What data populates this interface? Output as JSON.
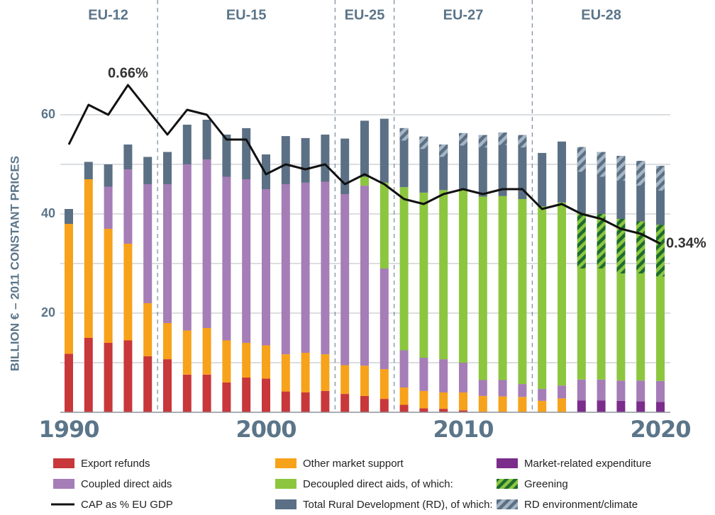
{
  "chart_data": {
    "type": "bar",
    "y_label": "BILLION € – 2011 CONSTANT PRICES",
    "categories": [
      1990,
      1991,
      1992,
      1993,
      1994,
      1995,
      1996,
      1997,
      1998,
      1999,
      2000,
      2001,
      2002,
      2003,
      2004,
      2005,
      2006,
      2007,
      2008,
      2009,
      2010,
      2011,
      2012,
      2013,
      2014,
      2015,
      2016,
      2017,
      2018,
      2019,
      2020
    ],
    "xticks": [
      1990,
      2000,
      2010,
      2020
    ],
    "ylim": [
      0,
      60
    ],
    "yticks": [
      20,
      40,
      60
    ],
    "ygrid": [
      0,
      10,
      20,
      30,
      40,
      50,
      60
    ],
    "y2lim": [
      0,
      0.6
    ],
    "periods": [
      {
        "label": "EU-12",
        "from": 1990,
        "to": 1994
      },
      {
        "label": "EU-15",
        "from": 1995,
        "to": 2003
      },
      {
        "label": "EU-25",
        "from": 2004,
        "to": 2006
      },
      {
        "label": "EU-27",
        "from": 2007,
        "to": 2013
      },
      {
        "label": "EU-28",
        "from": 2014,
        "to": 2020
      }
    ],
    "series": [
      {
        "name": "Export refunds",
        "color": "#c8373a",
        "values": [
          11.8,
          15,
          14,
          14.5,
          11.3,
          10.7,
          7.6,
          7.6,
          6,
          7,
          6.8,
          4.2,
          4,
          4.3,
          3.7,
          3.3,
          2.7,
          1.5,
          0.8,
          0.7,
          0.4,
          0.1,
          0.1,
          0.1,
          null,
          null,
          null,
          null,
          null,
          null,
          null
        ]
      },
      {
        "name": "Other market support",
        "color": "#f7a21b",
        "values": [
          26.2,
          32,
          23,
          19.5,
          10.7,
          7.3,
          8.9,
          9.4,
          8.5,
          7,
          6.7,
          7.5,
          8,
          7.4,
          5.8,
          6.1,
          6,
          3.5,
          3.5,
          3.3,
          3.6,
          3.2,
          3.1,
          3,
          2.3,
          2.8,
          null,
          null,
          null,
          null,
          null
        ]
      },
      {
        "name": "Market-related expenditure",
        "color": "#7b2d8b",
        "values": [
          null,
          null,
          null,
          null,
          null,
          null,
          null,
          null,
          null,
          null,
          null,
          null,
          null,
          null,
          null,
          null,
          null,
          null,
          null,
          null,
          null,
          null,
          null,
          null,
          null,
          null,
          2.4,
          2.4,
          2.3,
          2.2,
          2.1
        ]
      },
      {
        "name": "Coupled direct aids",
        "color": "#a57db7",
        "values": [
          null,
          null,
          8.5,
          15,
          24,
          28,
          33.5,
          34,
          33,
          33,
          31.5,
          34.3,
          34.3,
          34.8,
          34.5,
          36.3,
          20.3,
          7.5,
          6.7,
          6.7,
          6,
          3.2,
          3.3,
          2.6,
          2.4,
          2.6,
          4.2,
          4.2,
          4.1,
          4.2,
          4.2
        ]
      },
      {
        "name": "Decoupled direct aids, of which:",
        "color": "#8cc63f",
        "values": [
          null,
          null,
          null,
          null,
          null,
          null,
          null,
          null,
          null,
          null,
          null,
          null,
          null,
          null,
          null,
          1.8,
          17.3,
          32.9,
          33.3,
          34.1,
          35,
          37,
          37.1,
          37.3,
          36.8,
          36.9,
          33.6,
          33.4,
          32.6,
          32.1,
          31.5
        ]
      },
      {
        "name": "Greening",
        "color": "#8cc63f",
        "hatch_color": "#1e6b2f",
        "within": 4,
        "values": [
          null,
          null,
          null,
          null,
          null,
          null,
          null,
          null,
          null,
          null,
          null,
          null,
          null,
          null,
          null,
          null,
          null,
          null,
          null,
          null,
          null,
          null,
          null,
          null,
          null,
          null,
          11.2,
          11,
          11,
          10.5,
          10.4
        ]
      },
      {
        "name": "CAP as % EU GDP",
        "color": "#111111",
        "type": "line",
        "axis": "y2",
        "values": [
          0.54,
          0.62,
          0.6,
          0.66,
          0.61,
          0.56,
          0.61,
          0.6,
          0.55,
          0.55,
          0.48,
          0.5,
          0.49,
          0.5,
          0.46,
          0.48,
          0.46,
          0.43,
          0.42,
          0.44,
          0.45,
          0.44,
          0.45,
          0.45,
          0.41,
          0.42,
          0.4,
          0.39,
          0.37,
          0.36,
          0.34
        ],
        "value_labels": [
          null,
          null,
          null,
          "0.66%",
          null,
          null,
          null,
          null,
          null,
          null,
          null,
          null,
          null,
          null,
          null,
          null,
          null,
          null,
          null,
          null,
          null,
          null,
          null,
          null,
          null,
          null,
          null,
          null,
          null,
          null,
          "0.34%"
        ]
      },
      {
        "name": "Total Rural Development (RD), of which:",
        "color": "#5b7084",
        "values": [
          3,
          3.5,
          4.5,
          5,
          5.5,
          6.5,
          8,
          8,
          8.5,
          10.3,
          7,
          9.7,
          9,
          9.5,
          11.2,
          11.3,
          12.9,
          11.9,
          11.3,
          9.2,
          11.3,
          12.4,
          12.8,
          12.9,
          10.8,
          12.3,
          13.3,
          12.5,
          12.7,
          12.2,
          11.9
        ]
      },
      {
        "name": "RD environment/climate",
        "color": "#5b7084",
        "hatch_color": "#a6b5c4",
        "within": 7,
        "values": [
          null,
          null,
          null,
          null,
          null,
          null,
          null,
          null,
          null,
          null,
          null,
          null,
          null,
          null,
          null,
          null,
          null,
          2.5,
          2.5,
          2.5,
          2.5,
          2.5,
          2.5,
          2.5,
          null,
          null,
          5,
          5,
          5,
          5,
          5
        ]
      }
    ]
  }
}
